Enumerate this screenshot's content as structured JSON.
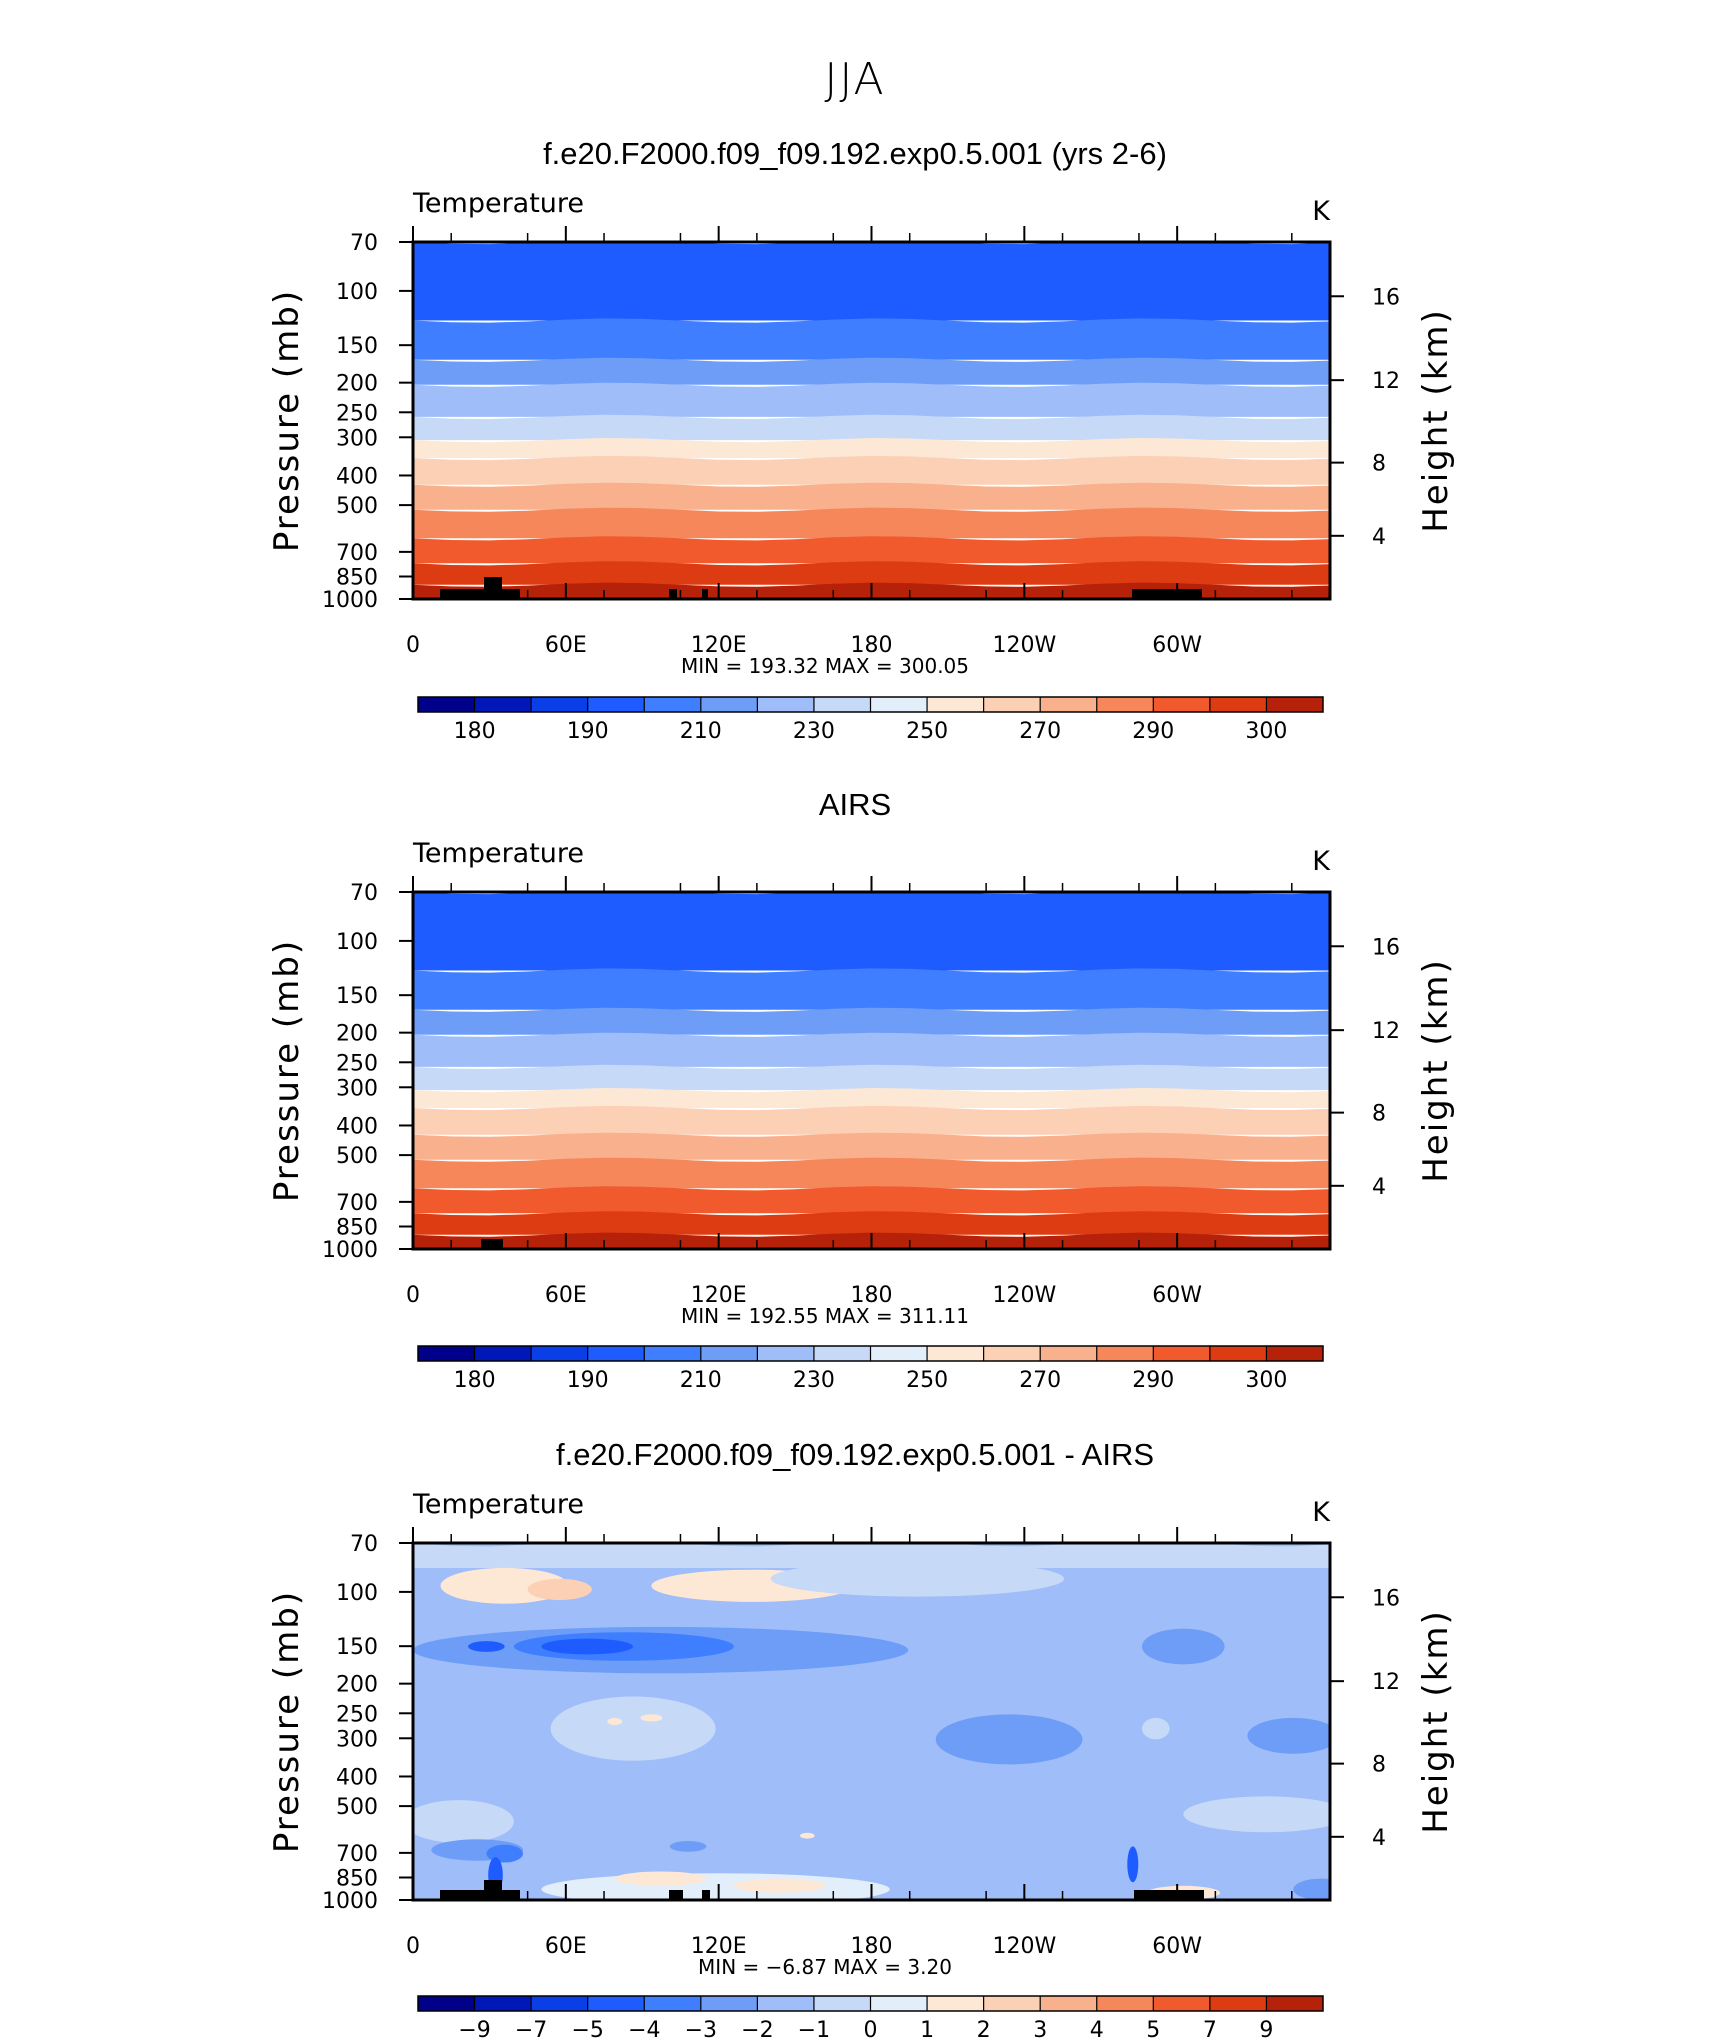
{
  "figure_title": "JJA",
  "colors": {
    "temperature_scale": [
      "#00008a",
      "#0018b8",
      "#0a3ee6",
      "#1e5cff",
      "#3f7fff",
      "#6e9df8",
      "#9fbdf8",
      "#c6daf8",
      "#e2eefa",
      "#fde8d6",
      "#fcd0b4",
      "#f9b08c",
      "#f6875a",
      "#f05a2c",
      "#dd3b12",
      "#b62209",
      "#820006"
    ],
    "difference_scale": [
      "#00008a",
      "#0018b8",
      "#0a3ee6",
      "#1e5cff",
      "#3f7fff",
      "#6e9df8",
      "#9fbdf8",
      "#c6daf8",
      "#e2eefa",
      "#fde8d6",
      "#fcd0b4",
      "#f9b08c",
      "#f6875a",
      "#f05a2c",
      "#dd3b12",
      "#b62209",
      "#820006"
    ],
    "topography": "#000000"
  },
  "panels": [
    {
      "title": "f.e20.F2000.f09_f09.192.exp0.5.001 (yrs 2-6)",
      "variable": "Temperature",
      "units": "K",
      "stats": "MIN  =  193.32   MAX  =  300.05",
      "colorbar_labels": [
        "180",
        "190",
        "210",
        "230",
        "250",
        "270",
        "290",
        "300"
      ]
    },
    {
      "title": "AIRS",
      "variable": "Temperature",
      "units": "K",
      "stats": "MIN  =  192.55   MAX  =  311.11",
      "colorbar_labels": [
        "180",
        "190",
        "210",
        "230",
        "250",
        "270",
        "290",
        "300"
      ]
    },
    {
      "title": "f.e20.F2000.f09_f09.192.exp0.5.001 - AIRS",
      "variable": "Temperature",
      "units": "K",
      "stats": "MIN  =    −6.87   MAX  =    3.20",
      "colorbar_labels": [
        "−9",
        "−7",
        "−5",
        "−4",
        "−3",
        "−2",
        "−1",
        "0",
        "1",
        "2",
        "3",
        "4",
        "5",
        "7",
        "9"
      ]
    }
  ],
  "axes": {
    "y_left_title": "Pressure (mb)",
    "y_right_title": "Height (km)",
    "x_tick_labels": [
      "0",
      "60E",
      "120E",
      "180",
      "120W",
      "60W"
    ],
    "pressure_ticks": [
      "70",
      "100",
      "150",
      "200",
      "250",
      "300",
      "400",
      "500",
      "700",
      "850",
      "1000"
    ],
    "height_ticks": [
      "16",
      "12",
      "8",
      "4"
    ]
  },
  "chart_data": [
    {
      "type": "heatmap",
      "title": "f.e20.F2000.f09_f09.192.exp0.5.001 (yrs 2-6)",
      "x": "longitude 0–360",
      "y_pressure_mb": [
        70,
        100,
        150,
        200,
        250,
        300,
        400,
        500,
        700,
        850,
        1000
      ],
      "bands_top_to_bottom_K": [
        200,
        200,
        210,
        220,
        230,
        240,
        250,
        260,
        270,
        280,
        290,
        295
      ],
      "min": 193.32,
      "max": 300.05
    },
    {
      "type": "heatmap",
      "title": "AIRS",
      "x": "longitude 0–360",
      "y_pressure_mb": [
        70,
        100,
        150,
        200,
        250,
        300,
        400,
        500,
        700,
        850,
        1000
      ],
      "bands_top_to_bottom_K": [
        200,
        200,
        210,
        220,
        230,
        240,
        250,
        260,
        270,
        280,
        290,
        295
      ],
      "min": 192.55,
      "max": 311.11
    },
    {
      "type": "heatmap",
      "title": "f.e20.F2000.f09_f09.192.exp0.5.001 - AIRS",
      "x": "longitude 0–360",
      "y_pressure_mb": [
        70,
        100,
        150,
        200,
        250,
        300,
        400,
        500,
        700,
        850,
        1000
      ],
      "background_K": -1.5,
      "features": [
        "warm anomaly ~0.5 K near 100 mb over 60E and 150E",
        "cold anomaly ~-4 K near 150 mb, 30E–150E",
        "cold anomaly ~-3 K near 300 mb around 120W",
        "warm anomaly near surface 70E–160E"
      ],
      "min": -6.87,
      "max": 3.2
    }
  ]
}
